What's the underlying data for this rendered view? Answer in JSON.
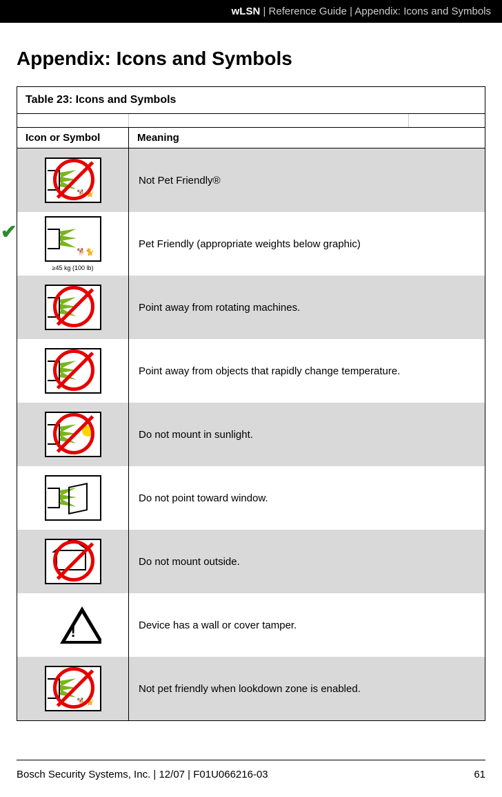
{
  "header": {
    "product": "wLSN",
    "breadcrumb_1": "Reference Guide",
    "breadcrumb_2": "Appendix: Icons and Symbols"
  },
  "page_title": "Appendix: Icons and Symbols",
  "table": {
    "caption_prefix": "Table 23:",
    "caption_title": "Icons and Symbols",
    "col_icon": "Icon or Symbol",
    "col_meaning": "Meaning",
    "rows": [
      {
        "icon_name": "not-pet-friendly-icon",
        "meaning": "Not Pet Friendly®",
        "shaded": true,
        "prohibit": true,
        "sensor": true,
        "pets": true
      },
      {
        "icon_name": "pet-friendly-icon",
        "meaning": "Pet Friendly (appropriate weights below graphic)",
        "shaded": false,
        "prohibit": false,
        "sensor": true,
        "check": true,
        "pets": true,
        "weight_label": "≥45 kg (100 lb)"
      },
      {
        "icon_name": "rotating-machines-icon",
        "meaning": "Point away from rotating machines.",
        "shaded": true,
        "prohibit": true,
        "sensor": true
      },
      {
        "icon_name": "temperature-change-icon",
        "meaning": "Point away from objects that rapidly change temperature.",
        "shaded": false,
        "prohibit": true,
        "sensor": true
      },
      {
        "icon_name": "no-sunlight-icon",
        "meaning": "Do not mount in sunlight.",
        "shaded": true,
        "prohibit": true,
        "sensor": true,
        "sun": true
      },
      {
        "icon_name": "no-window-icon",
        "meaning": "Do not point toward window.",
        "shaded": false,
        "prohibit": false,
        "sensor": true,
        "window": true
      },
      {
        "icon_name": "no-outside-icon",
        "meaning": "Do not mount outside.",
        "shaded": true,
        "prohibit": true,
        "house": true
      },
      {
        "icon_name": "tamper-icon",
        "meaning": "Device has a wall or cover tamper.",
        "shaded": false,
        "prohibit": false,
        "triangle": true
      },
      {
        "icon_name": "lookdown-not-pet-icon",
        "meaning": "Not pet friendly when lookdown zone is enabled.",
        "shaded": true,
        "prohibit": true,
        "sensor": true,
        "pets": true
      }
    ]
  },
  "footer": {
    "company": "Bosch Security Systems, Inc. | 12/07 | F01U066216-03",
    "page_number": "61"
  },
  "colors": {
    "prohibit_red": "#e60000",
    "shaded_bg": "#d9d9d9",
    "ray_green": "#7ab51d",
    "check_green": "#2e8b2e",
    "header_bg": "#000000",
    "header_text": "#ffffff",
    "header_light": "#cccccc",
    "border": "#000000"
  }
}
